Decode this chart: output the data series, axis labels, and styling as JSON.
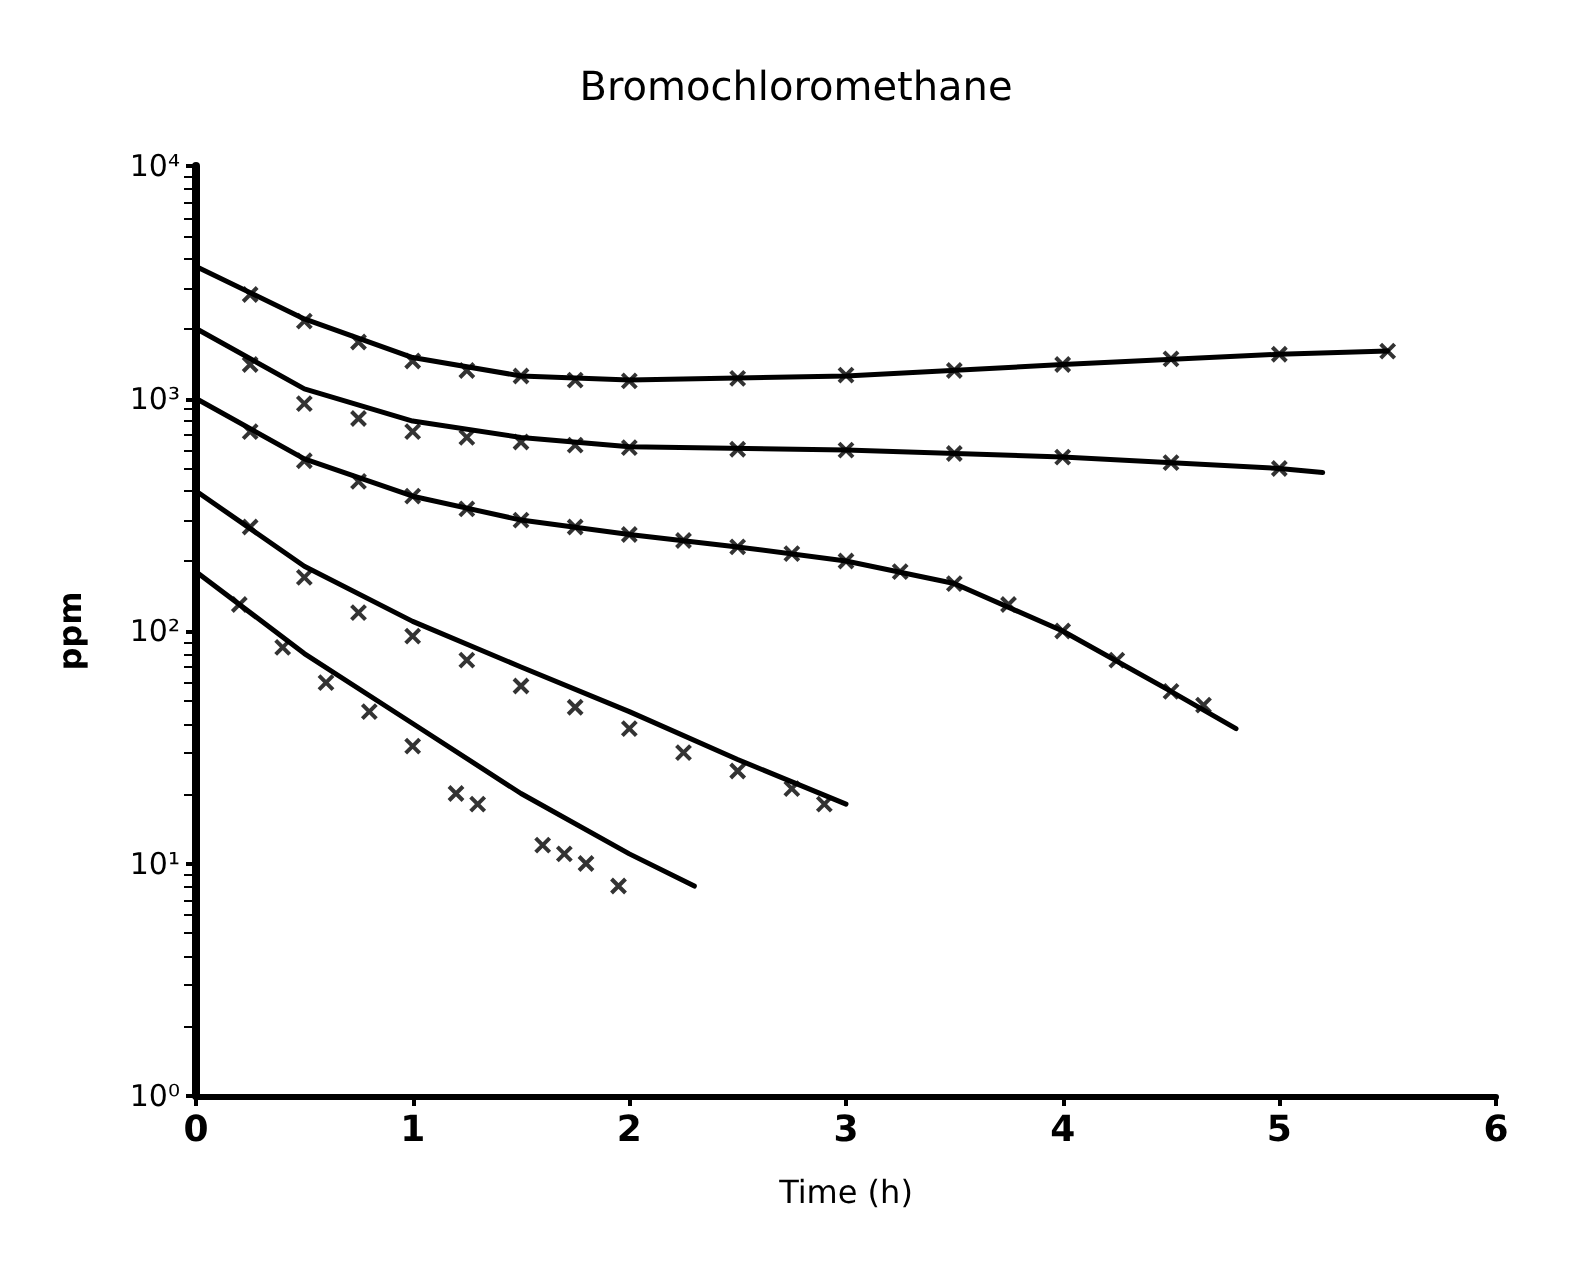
{
  "chart_data": {
    "type": "line",
    "title": "Bromochloromethane",
    "xlabel": "Time (h)",
    "ylabel": "ppm",
    "log": true,
    "grid": false,
    "xlim": [
      0,
      6
    ],
    "xticks": [
      0,
      1,
      2,
      3,
      4,
      5,
      6
    ],
    "ylim": [
      1,
      10000
    ],
    "yticks": [
      {
        "value": 1,
        "label": "10⁰"
      },
      {
        "value": 10,
        "label": "10¹"
      },
      {
        "value": 100,
        "label": "10²"
      },
      {
        "value": 1000,
        "label": "10³"
      },
      {
        "value": 10000,
        "label": "10⁴"
      }
    ],
    "series": [
      {
        "marker": "none",
        "color": "#000000",
        "x": [
          0,
          0.5,
          1,
          1.5,
          2,
          3,
          4,
          5,
          5.5
        ],
        "values": [
          3700,
          2200,
          1500,
          1250,
          1200,
          1250,
          1400,
          1550,
          1600
        ]
      },
      {
        "type": "scatter",
        "marker": "cross",
        "color": "#000000",
        "x": [
          0.25,
          0.5,
          0.75,
          1,
          1.25,
          1.5,
          1.75,
          2,
          2.5,
          3,
          3.5,
          4,
          4.5,
          5,
          5.5
        ],
        "values": [
          2800,
          2150,
          1750,
          1450,
          1320,
          1250,
          1200,
          1190,
          1220,
          1260,
          1320,
          1400,
          1480,
          1550,
          1600
        ]
      },
      {
        "marker": "none",
        "color": "#000000",
        "x": [
          0,
          0.5,
          1,
          1.5,
          2,
          3,
          4,
          5,
          5.2
        ],
        "values": [
          2000,
          1100,
          800,
          680,
          620,
          600,
          560,
          500,
          480
        ]
      },
      {
        "type": "scatter",
        "marker": "cross",
        "color": "#000000",
        "x": [
          0.25,
          0.5,
          0.75,
          1,
          1.25,
          1.5,
          1.75,
          2,
          2.5,
          3,
          3.5,
          4,
          4.5,
          5
        ],
        "values": [
          1400,
          950,
          820,
          720,
          680,
          650,
          630,
          615,
          605,
          600,
          580,
          560,
          530,
          500
        ]
      },
      {
        "marker": "none",
        "color": "#000000",
        "x": [
          0,
          0.5,
          1,
          1.5,
          2,
          2.5,
          3,
          3.5,
          4,
          4.5,
          4.8
        ],
        "values": [
          1000,
          550,
          380,
          300,
          260,
          230,
          200,
          160,
          100,
          55,
          38
        ]
      },
      {
        "type": "scatter",
        "marker": "cross",
        "color": "#000000",
        "x": [
          0.25,
          0.5,
          0.75,
          1,
          1.25,
          1.5,
          1.75,
          2,
          2.25,
          2.5,
          2.75,
          3,
          3.25,
          3.5,
          3.75,
          4,
          4.25,
          4.5,
          4.65
        ],
        "values": [
          720,
          540,
          440,
          380,
          335,
          300,
          280,
          260,
          245,
          230,
          215,
          200,
          180,
          160,
          130,
          100,
          75,
          55,
          48
        ]
      },
      {
        "marker": "none",
        "color": "#000000",
        "x": [
          0,
          0.5,
          1,
          1.5,
          2,
          2.5,
          3
        ],
        "values": [
          400,
          190,
          110,
          70,
          45,
          28,
          18
        ]
      },
      {
        "type": "scatter",
        "marker": "cross",
        "color": "#000000",
        "x": [
          0.25,
          0.5,
          0.75,
          1,
          1.25,
          1.5,
          1.75,
          2,
          2.25,
          2.5,
          2.75,
          2.9
        ],
        "values": [
          280,
          170,
          120,
          95,
          75,
          58,
          47,
          38,
          30,
          25,
          21,
          18
        ]
      },
      {
        "marker": "none",
        "color": "#000000",
        "x": [
          0,
          0.5,
          1,
          1.5,
          2,
          2.3
        ],
        "values": [
          180,
          80,
          40,
          20,
          11,
          8
        ]
      },
      {
        "type": "scatter",
        "marker": "cross",
        "color": "#000000",
        "x": [
          0.2,
          0.4,
          0.6,
          0.8,
          1.0,
          1.2,
          1.3,
          1.6,
          1.7,
          1.8,
          1.95
        ],
        "values": [
          130,
          85,
          60,
          45,
          32,
          20,
          18,
          12,
          11,
          10,
          8
        ]
      }
    ]
  }
}
